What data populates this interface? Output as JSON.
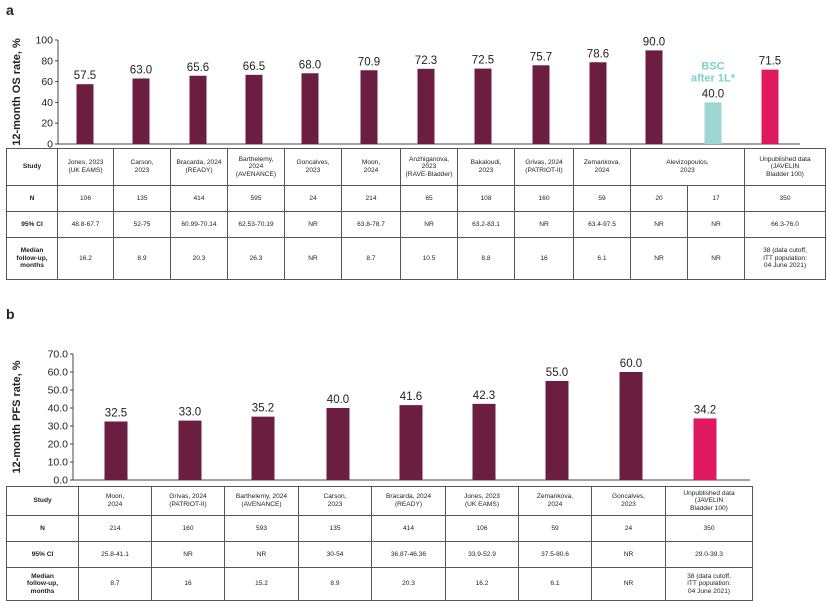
{
  "panel_a": {
    "letter": "a",
    "bsc_label": [
      "BSC",
      "after 1L*"
    ],
    "table": {
      "header_label": "Study",
      "studies": [
        "Jones, 2023\n(UK EAMS)",
        "Carson,\n2023",
        "Bracarda, 2024\n(READY)",
        "Barthelemy,\n2024\n(AVENANCE)",
        "Goncalves,\n2023",
        "Moon,\n2024",
        "Anzhiganova,\n2023\n(RAVE-Bladder)",
        "Bakaloudi,\n2023",
        "Grivas, 2024\n(PATRIOT-II)",
        "Zemankova,\n2024",
        "Alevizopoulos,\n2023",
        "Unpublished data\n(JAVELIN\nBladder 100)"
      ],
      "rows": [
        {
          "label": "N",
          "cells": [
            "106",
            "135",
            "414",
            "595",
            "24",
            "214",
            "65",
            "108",
            "160",
            "59",
            "20",
            "17",
            "350"
          ]
        },
        {
          "label": "95% CI",
          "cells": [
            "48.8-67.7",
            "52-75",
            "60.99-70.14",
            "62.53-70.19",
            "NR",
            "63.8-78.7",
            "NR",
            "63.2-83.1",
            "NR",
            "63.4-97.5",
            "NR",
            "NR",
            "66.3-76.0"
          ]
        },
        {
          "label": "Median\nfollow-up,\nmonths",
          "cells": [
            "16.2",
            "8.9",
            "20.3",
            "26.3",
            "NR",
            "8.7",
            "10.5",
            "8.8",
            "16",
            "6.1",
            "NR",
            "NR",
            "38 (data cutoff,\nITT population:\n04 June 2021)"
          ]
        }
      ]
    }
  },
  "panel_b": {
    "letter": "b",
    "table": {
      "header_label": "Study",
      "studies": [
        "Moon,\n2024",
        "Grivas, 2024\n(PATRIOT-II)",
        "Barthelemy, 2024\n(AVENANCE)",
        "Carson,\n2023",
        "Bracarda, 2024\n(READY)",
        "Jones, 2023\n(UK EAMS)",
        "Zemankova,\n2024",
        "Goncalves,\n2023",
        "Unpublished data\n(JAVELIN\nBladder 100)"
      ],
      "rows": [
        {
          "label": "N",
          "cells": [
            "214",
            "160",
            "593",
            "135",
            "414",
            "106",
            "59",
            "24",
            "350"
          ]
        },
        {
          "label": "95% CI",
          "cells": [
            "25.8-41.1",
            "NR",
            "NR",
            "30-54",
            "36.87-46.36",
            "33.9-52.9",
            "37.5-80.6",
            "NR",
            "29.0-39.3"
          ]
        },
        {
          "label": "Median\nfollow-up,\nmonths",
          "cells": [
            "8.7",
            "16",
            "15.2",
            "8.9",
            "20.3",
            "16.2",
            "6.1",
            "NR",
            "38 (data cutoff,\nITT population:\n04 June 2021)"
          ]
        }
      ]
    }
  },
  "colors": {
    "primary": "#6b1e3f",
    "bsc": "#9ed6d3",
    "javelin": "#e0185d",
    "bsc_text": "#7fd0cc"
  },
  "chart_data": [
    {
      "type": "bar",
      "ylabel": "12-month OS rate, %",
      "ylim": [
        0,
        100
      ],
      "yticks": [
        "0",
        "20",
        "40",
        "60",
        "80",
        "100"
      ],
      "grid": false,
      "values": [
        57.5,
        63.0,
        65.6,
        66.5,
        68.0,
        70.9,
        72.3,
        72.5,
        75.7,
        78.6,
        90.0,
        40.0,
        71.5
      ],
      "value_labels": [
        "57.5",
        "63.0",
        "65.6",
        "66.5",
        "68.0",
        "70.9",
        "72.3",
        "72.5",
        "75.7",
        "78.6",
        "90.0",
        "40.0",
        "71.5"
      ],
      "bar_colors": [
        "primary",
        "primary",
        "primary",
        "primary",
        "primary",
        "primary",
        "primary",
        "primary",
        "primary",
        "primary",
        "primary",
        "bsc",
        "javelin"
      ]
    },
    {
      "type": "bar",
      "ylabel": "12-month PFS rate, %",
      "ylim": [
        0,
        70
      ],
      "yticks": [
        "0.0",
        "10.0",
        "20.0",
        "30.0",
        "40.0",
        "50.0",
        "60.0",
        "70.0"
      ],
      "grid": false,
      "values": [
        32.5,
        33.0,
        35.2,
        40.0,
        41.6,
        42.3,
        55.0,
        60.0,
        34.2
      ],
      "value_labels": [
        "32.5",
        "33.0",
        "35.2",
        "40.0",
        "41.6",
        "42.3",
        "55.0",
        "60.0",
        "34.2"
      ],
      "bar_colors": [
        "primary",
        "primary",
        "primary",
        "primary",
        "primary",
        "primary",
        "primary",
        "primary",
        "javelin"
      ]
    }
  ]
}
